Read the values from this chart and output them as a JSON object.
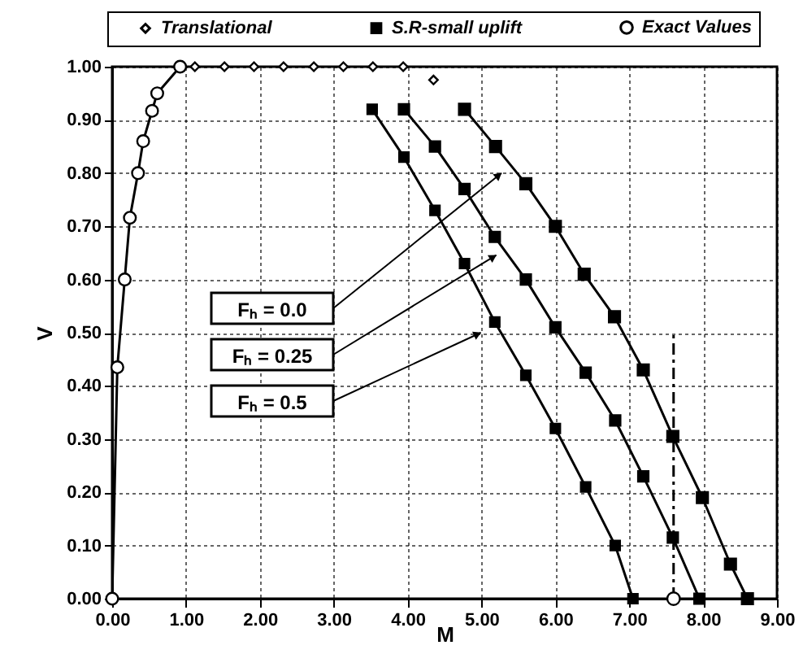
{
  "chart_data": {
    "type": "line",
    "xlabel": "M",
    "ylabel": "V",
    "xlim": [
      0,
      9
    ],
    "ylim": [
      0,
      1
    ],
    "xticks": [
      {
        "value": 0,
        "label": "0.00"
      },
      {
        "value": 1,
        "label": "1.00"
      },
      {
        "value": 2,
        "label": "2.00"
      },
      {
        "value": 3,
        "label": "3.00"
      },
      {
        "value": 4,
        "label": "4.00"
      },
      {
        "value": 5,
        "label": "5.00"
      },
      {
        "value": 6,
        "label": "6.00"
      },
      {
        "value": 7,
        "label": "7.00"
      },
      {
        "value": 8,
        "label": "8.00"
      },
      {
        "value": 9,
        "label": "9.00"
      }
    ],
    "yticks": [
      {
        "value": 0,
        "label": "0.00"
      },
      {
        "value": 0.1,
        "label": "0.10"
      },
      {
        "value": 0.2,
        "label": "0.20"
      },
      {
        "value": 0.3,
        "label": "0.30"
      },
      {
        "value": 0.4,
        "label": "0.40"
      },
      {
        "value": 0.5,
        "label": "0.50"
      },
      {
        "value": 0.6,
        "label": "0.60"
      },
      {
        "value": 0.7,
        "label": "0.70"
      },
      {
        "value": 0.8,
        "label": "0.80"
      },
      {
        "value": 0.9,
        "label": "0.90"
      },
      {
        "value": 1,
        "label": "1.00"
      }
    ],
    "grid": true,
    "legend": "top",
    "series": [
      {
        "name": "Translational",
        "type": "scatter",
        "marker": "diamond",
        "color": "#000000",
        "x": [
          1.12,
          1.52,
          1.92,
          2.32,
          2.73,
          3.13,
          3.53,
          3.94,
          4.35
        ],
        "values": [
          1.0,
          1.0,
          1.0,
          1.0,
          1.0,
          1.0,
          1.0,
          1.0,
          0.975
        ]
      },
      {
        "name": "S.R-small uplift",
        "type": "line",
        "marker": "square",
        "color": "#000000",
        "x": [
          3.52,
          3.95,
          4.37,
          4.77,
          5.18,
          5.6,
          6.0,
          6.41,
          6.81,
          7.05
        ],
        "values": [
          0.92,
          0.83,
          0.73,
          0.63,
          0.52,
          0.42,
          0.32,
          0.21,
          0.1,
          0
        ]
      },
      {
        "type": "line",
        "marker": "square",
        "color": "#000000",
        "x": [
          3.95,
          4.37,
          4.77,
          5.18,
          5.6,
          6.0,
          6.41,
          6.81,
          7.19,
          7.59,
          7.95
        ],
        "values": [
          0.92,
          0.85,
          0.77,
          0.68,
          0.6,
          0.51,
          0.425,
          0.335,
          0.23,
          0.115,
          0
        ]
      },
      {
        "type": "line",
        "marker": "square",
        "color": "#000000",
        "x": [
          4.77,
          5.19,
          5.6,
          6.0,
          6.39,
          6.8,
          7.19,
          7.59,
          7.99,
          8.37,
          8.6
        ],
        "values": [
          0.92,
          0.85,
          0.78,
          0.7,
          0.61,
          0.53,
          0.43,
          0.305,
          0.19,
          0.065,
          0
        ]
      },
      {
        "name": "Exact Values",
        "type": "line",
        "marker": "circle",
        "color": "#000000",
        "x": [
          0,
          0.07,
          0.17,
          0.24,
          0.35,
          0.42,
          0.54,
          0.61,
          0.92
        ],
        "values": [
          0,
          0.435,
          0.6,
          0.716,
          0.8,
          0.86,
          0.917,
          0.95,
          1.0
        ]
      },
      {
        "type": "scatter",
        "marker": "circle",
        "color": "#000000",
        "x": [
          7.6
        ],
        "values": [
          0
        ]
      },
      {
        "type": "line",
        "marker": "none",
        "line_style": "dashed",
        "color": "#000000",
        "x": [
          7.6,
          7.6
        ],
        "values": [
          0,
          0.5
        ]
      }
    ],
    "annotations": [
      "Fₕ = 0.0",
      "Fₕ = 0.25",
      "Fₕ = 0.5"
    ]
  }
}
